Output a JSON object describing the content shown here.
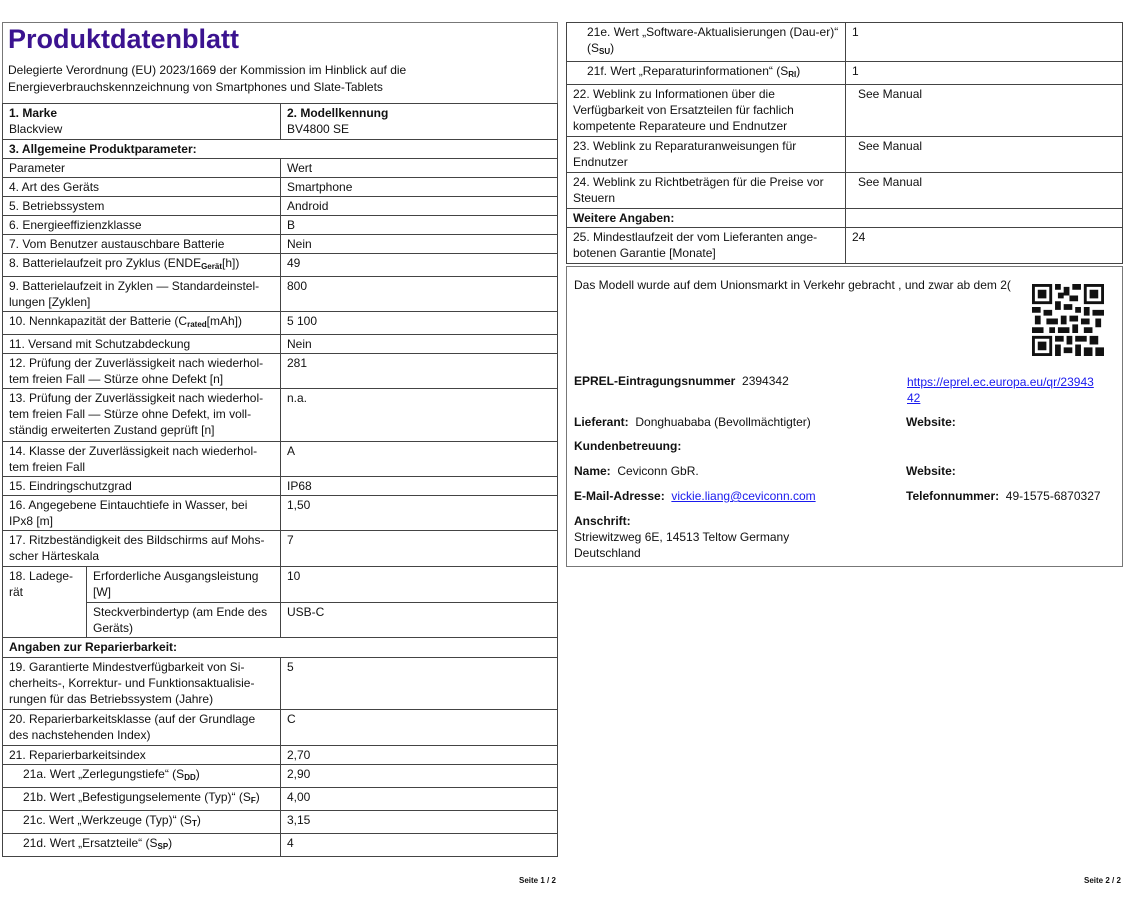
{
  "header": {
    "title": "Produktdatenblatt",
    "subtitle": "Delegierte Verordnung (EU) 2023/1669 der Kommission im Hinblick auf die Energieverbrauchskennzeichnung von Smartphones und Slate-Tablets"
  },
  "brand": {
    "label": "1. Marke",
    "value": "Blackview"
  },
  "model": {
    "label": "2. Modellkennung",
    "value": "BV4800 SE"
  },
  "left_rows": [
    {
      "h": 19,
      "section": "3. Allgemeine Produktparameter:"
    },
    {
      "h": 19,
      "p": "Parameter",
      "v": "Wert"
    },
    {
      "h": 19,
      "p": "4. Art des Geräts",
      "v": "Smartphone"
    },
    {
      "h": 19,
      "p": "5. Betriebssystem",
      "v": "Android"
    },
    {
      "h": 19,
      "p": "6. Energieeffizienzklasse",
      "v": "B"
    },
    {
      "h": 19,
      "p": "7. Vom Benutzer austauschbare Batterie",
      "v": "Nein"
    },
    {
      "h": 21,
      "p": "8. Batterielaufzeit pro Zyklus (ENDE",
      "sub": "Gerät",
      "post": "[h])",
      "v": "49"
    },
    {
      "h": 34,
      "p": "9. Batterielaufzeit in Zyklen — Standardeinstel-lungen [Zyklen]",
      "v": "800"
    },
    {
      "h": 22,
      "p": "10. Nennkapazität der Batterie (C",
      "sub": "rated",
      "post": "[mAh])",
      "v": "5 100"
    },
    {
      "h": 19,
      "p": "11. Versand mit Schutzabdeckung",
      "v": "Nein"
    },
    {
      "h": 35,
      "p": "12. Prüfung der Zuverlässigkeit nach wiederhol-tem freien Fall — Stürze ohne Defekt [n]",
      "v": "281"
    },
    {
      "h": 53,
      "p": "13. Prüfung der Zuverlässigkeit nach wiederhol-tem freien Fall — Stürze ohne Defekt, im voll-ständig erweiterten Zustand geprüft [n]",
      "v": "n.a."
    },
    {
      "h": 35,
      "p": "14. Klasse der Zuverlässigkeit nach wiederhol-tem freien Fall",
      "v": "A"
    },
    {
      "h": 19,
      "p": "15. Eindringschutzgrad",
      "v": "IP68"
    },
    {
      "h": 35,
      "p": "16. Angegebene Eintauchtiefe in Wasser, bei IPx8 [m]",
      "v": "1,50"
    },
    {
      "h": 36,
      "p": "17. Ritzbeständigkeit des Bildschirms auf Mohs-scher Härteskala",
      "v": "7"
    },
    {
      "h": 36,
      "group": "18. Ladege-rät",
      "p": "Erforderliche Ausgangsleistung [W]",
      "v": "10"
    },
    {
      "h": 35,
      "p": "Steckverbindertyp (am Ende des Geräts)",
      "v": "USB-C",
      "cont": true
    },
    {
      "h": 20,
      "section": "Angaben zur Reparierbarkeit:"
    },
    {
      "h": 52,
      "p": "19. Garantierte Mindestverfügbarkeit von Si-cherheits-, Korrektur- und Funktionsaktualisie-rungen für das Betriebssystem (Jahre)",
      "v": "5"
    },
    {
      "h": 36,
      "p": "20. Reparierbarkeitsklasse (auf der Grundlage des nachstehenden Index)",
      "v": "C"
    },
    {
      "h": 19,
      "p": "21. Reparierbarkeitsindex",
      "v": "2,70"
    },
    {
      "h": 19,
      "p": "21a. Wert „Zerlegungstiefe“ (S",
      "sub": "DD",
      "post": ")",
      "v": "2,90",
      "indent": true
    },
    {
      "h": 20,
      "p": "21b. Wert „Befestigungselemente (Typ)“ (S",
      "sub": "F",
      "post": ")",
      "v": "4,00",
      "indent": true
    },
    {
      "h": 20,
      "p": "21c. Wert „Werkzeuge (Typ)“ (S",
      "sub": "T",
      "post": ")",
      "v": "3,15",
      "indent": true
    },
    {
      "h": 21,
      "p": "21d. Wert „Ersatzteile“ (S",
      "sub": "SP",
      "post": ")",
      "v": "4",
      "indent": true
    }
  ],
  "right_rows": [
    {
      "h": 37,
      "p": "21e. Wert „Software-Aktualisierungen (Dau-er)“ (S",
      "sub": "SU",
      "post": ")",
      "v": "1",
      "indent": true
    },
    {
      "h": 18,
      "p": "21f. Wert „Reparaturinformationen“ (S",
      "sub": "RI",
      "post": ")",
      "v": "1",
      "indent": true
    },
    {
      "h": 52,
      "p": "22. Weblink zu Informationen über die Verfügbarkeit von Ersatzteilen für fachlich kompetente Reparateure und Endnutzer",
      "v": "See Manual"
    },
    {
      "h": 36,
      "p": "23. Weblink zu Reparaturanweisungen für Endnutzer",
      "v": "See Manual"
    },
    {
      "h": 36,
      "p": "24. Weblink zu Richtbeträgen für die Preise vor Steuern",
      "v": "See Manual"
    },
    {
      "h": 18,
      "p": "Weitere Angaben:",
      "v": "",
      "bold": true
    },
    {
      "h": 36,
      "p": "25. Mindestlaufzeit der vom Lieferanten ange-botenen Garantie [Monate]",
      "v": "24"
    }
  ],
  "info": {
    "market_text": "Das Modell wurde auf dem Unionsmarkt in Verkehr gebracht , und zwar ab dem 2(",
    "eprel_label": "EPREL-Eintragungsnummer",
    "eprel_value": "2394342",
    "eprel_link": "https://eprel.ec.europa.eu/qr/2394342",
    "supplier_label": "Lieferant:",
    "supplier_value": "Donghuababa (Bevollmächtigter)",
    "website_label": "Website:",
    "support_label": "Kundenbetreuung:",
    "name_label": "Name:",
    "name_value": "Ceviconn GbR.",
    "website2_label": "Website:",
    "email_label": "E-Mail-Adresse:",
    "email_value": "vickie.liang@ceviconn.com",
    "phone_label": "Telefonnummer:",
    "phone_value": "49-1575-6870327",
    "address_label": "Anschrift:",
    "address_line1": "Striewitzweg 6E, 14513 Teltow Germany",
    "address_line2": "Deutschland",
    "qr_icon": "qr-code"
  },
  "footer": {
    "page1": "Seite 1 / 2",
    "page2": "Seite 2 / 2"
  },
  "colors": {
    "title": "#3b1390",
    "link": "#1a1aee"
  }
}
